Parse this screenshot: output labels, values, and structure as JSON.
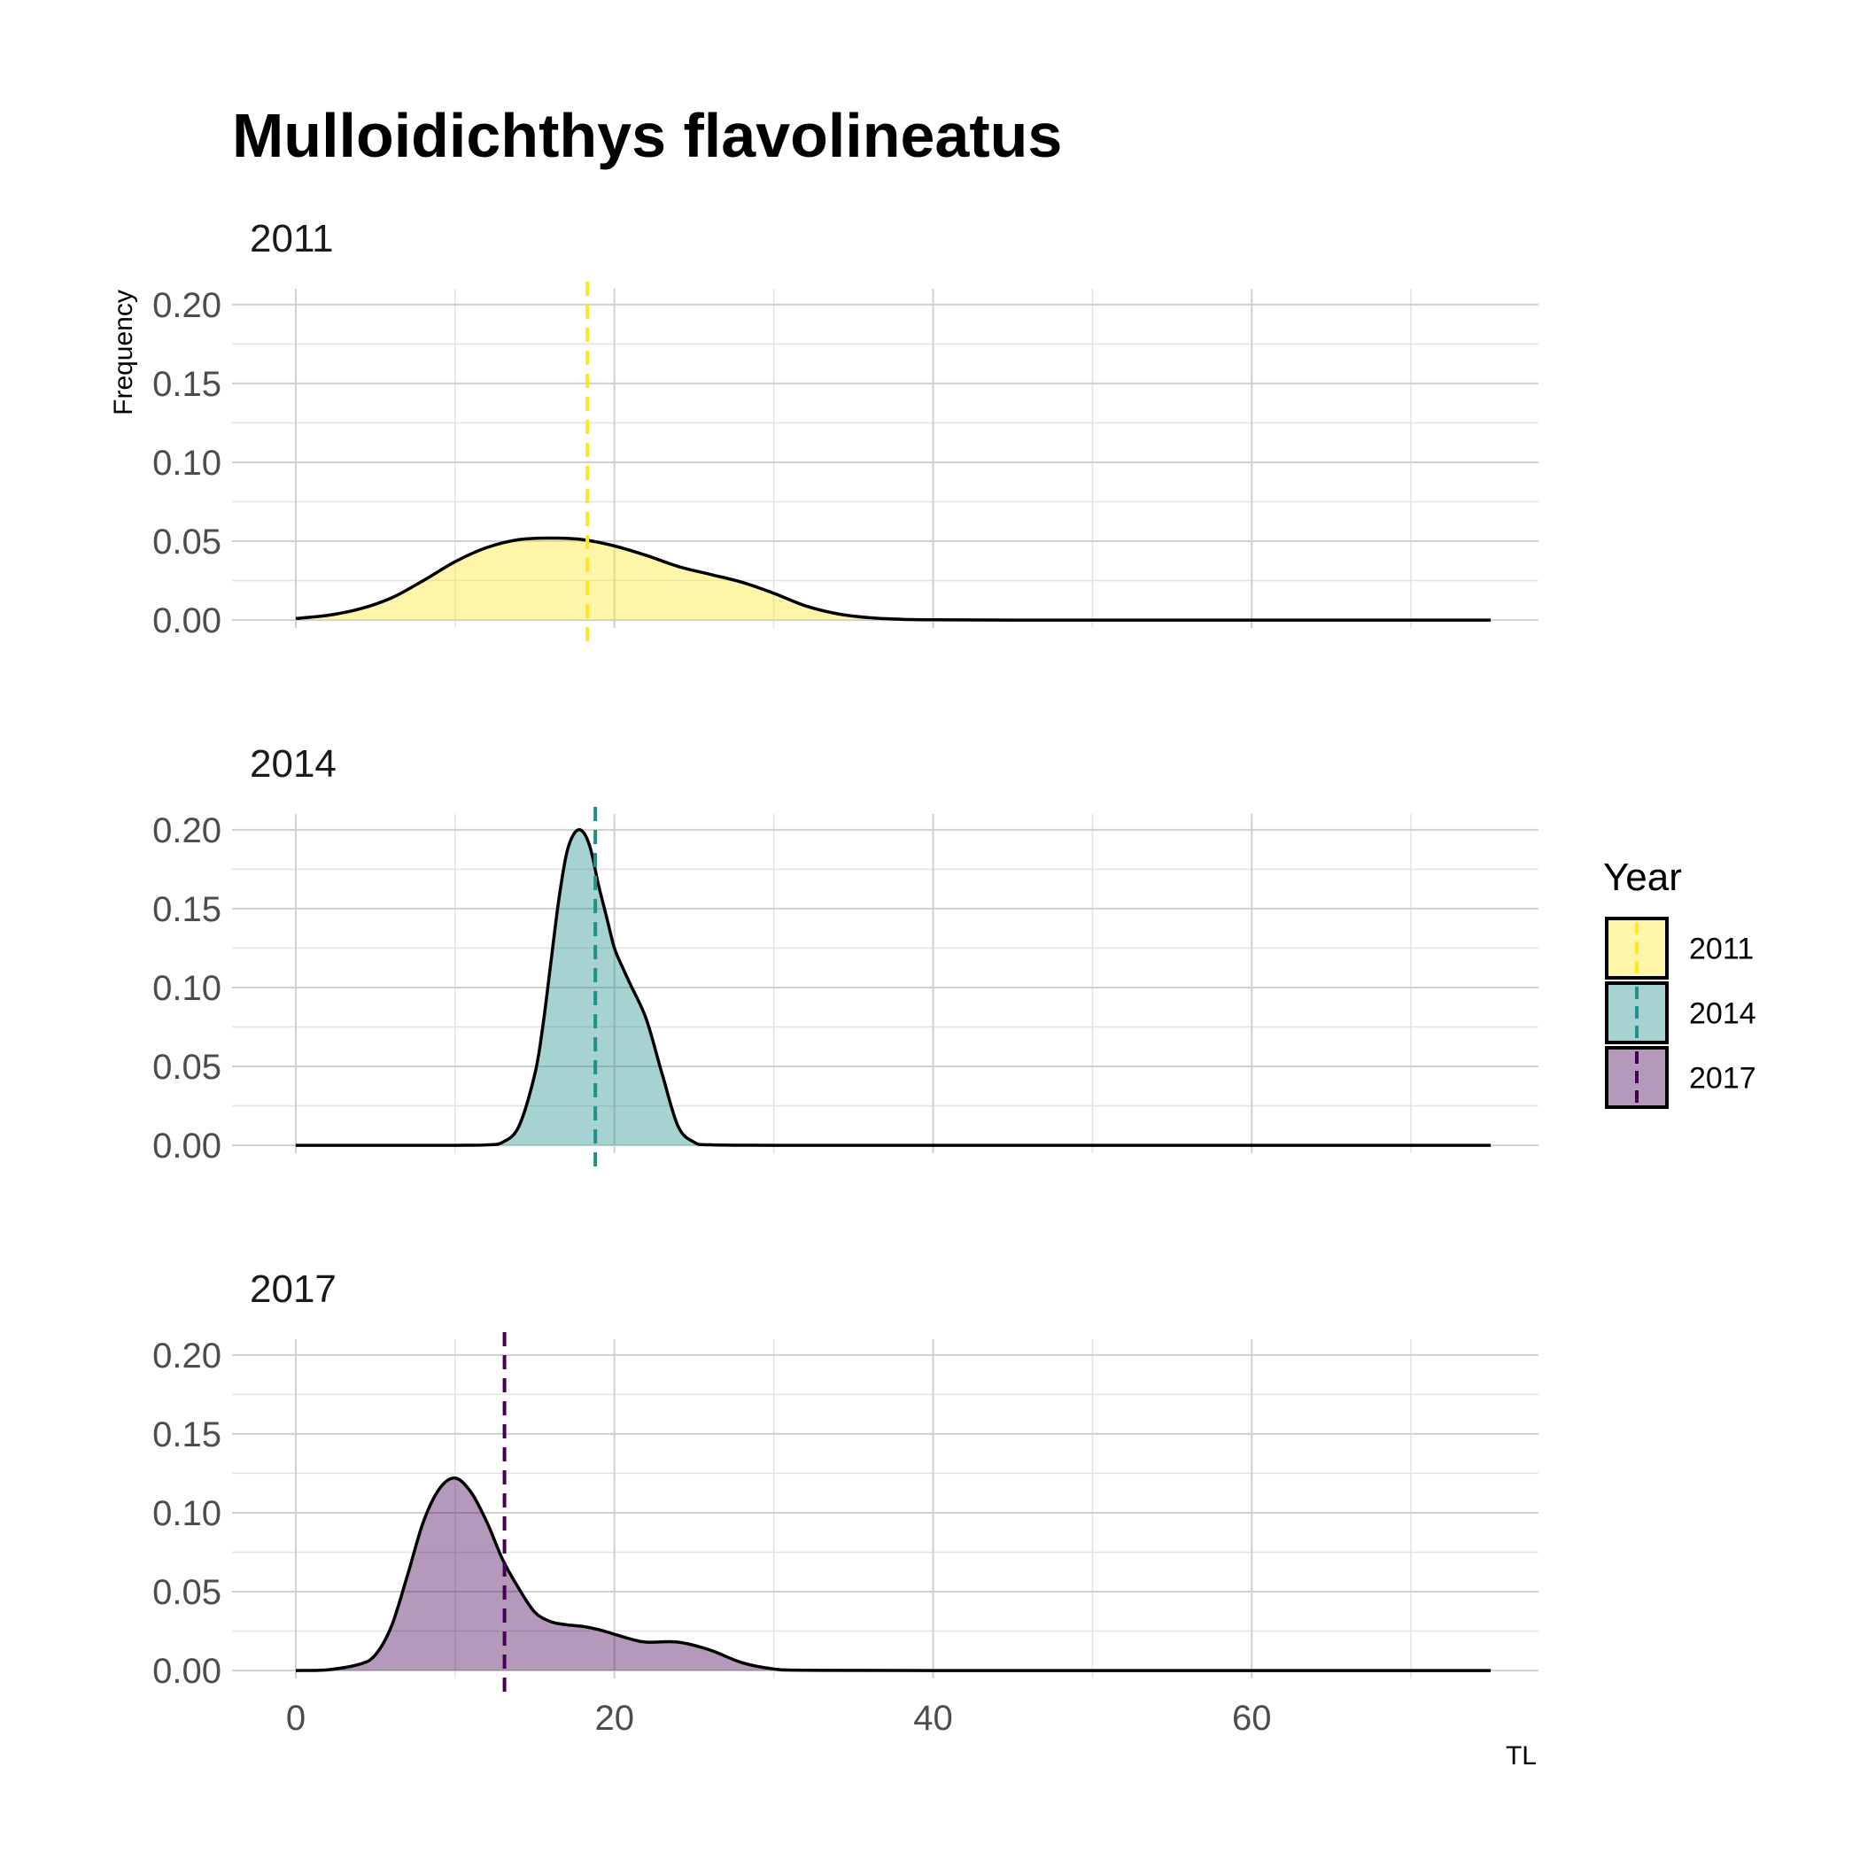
{
  "chart_data": {
    "type": "area",
    "title": "Mulloidichthys flavolineatus",
    "xlabel": "TL",
    "ylabel": "Frequency",
    "xlim": [
      -4,
      78
    ],
    "ylim": [
      -0.005,
      0.21
    ],
    "x_ticks": [
      0,
      20,
      40,
      60
    ],
    "x_tick_labels": [
      "0",
      "20",
      "40",
      "60"
    ],
    "y_ticks": [
      0,
      0.05,
      0.1,
      0.15,
      0.2
    ],
    "y_tick_labels": [
      "0.00",
      "0.05",
      "0.10",
      "0.15",
      "0.20"
    ],
    "grid": true,
    "legend": {
      "title": "Year",
      "position": "right",
      "entries": [
        {
          "label": "2011",
          "color": "#FDE725"
        },
        {
          "label": "2014",
          "color": "#21908C"
        },
        {
          "label": "2017",
          "color": "#440154"
        }
      ]
    },
    "panels": [
      {
        "label": "2011",
        "color": "#FDE725",
        "mean_line_x": 18.3,
        "x": [
          0,
          2,
          4,
          6,
          8,
          10,
          12,
          14,
          16,
          18,
          20,
          22,
          24,
          26,
          28,
          30,
          32,
          34,
          36,
          38,
          40,
          45,
          50,
          60,
          70,
          75
        ],
        "y": [
          0.001,
          0.003,
          0.007,
          0.014,
          0.025,
          0.037,
          0.046,
          0.051,
          0.052,
          0.051,
          0.047,
          0.041,
          0.034,
          0.029,
          0.024,
          0.017,
          0.009,
          0.004,
          0.0015,
          0.0005,
          0.0002,
          0,
          0,
          0,
          0,
          0
        ]
      },
      {
        "label": "2014",
        "color": "#21908C",
        "mean_line_x": 18.8,
        "x": [
          0,
          5,
          10,
          12,
          13,
          14,
          15,
          15.5,
          16,
          16.5,
          17,
          17.5,
          18,
          18.5,
          19,
          19.5,
          20,
          20.5,
          21,
          22,
          23,
          24,
          25,
          26,
          30,
          40,
          75
        ],
        "y": [
          0,
          0,
          0,
          0.0003,
          0.002,
          0.012,
          0.045,
          0.075,
          0.115,
          0.155,
          0.185,
          0.198,
          0.199,
          0.188,
          0.165,
          0.145,
          0.125,
          0.113,
          0.102,
          0.08,
          0.045,
          0.012,
          0.002,
          0.0003,
          0,
          0,
          0
        ]
      },
      {
        "label": "2017",
        "color": "#440154",
        "mean_line_x": 13.1,
        "x": [
          0,
          2,
          4,
          5,
          6,
          7,
          8,
          9,
          10,
          11,
          12,
          13,
          14,
          15,
          16,
          17,
          18,
          19,
          20,
          21,
          22,
          24,
          26,
          28,
          30,
          32,
          40,
          75
        ],
        "y": [
          0,
          0.0005,
          0.004,
          0.01,
          0.028,
          0.06,
          0.094,
          0.115,
          0.122,
          0.113,
          0.094,
          0.07,
          0.052,
          0.037,
          0.031,
          0.029,
          0.028,
          0.026,
          0.023,
          0.02,
          0.018,
          0.018,
          0.013,
          0.005,
          0.001,
          0.0002,
          0,
          0
        ]
      }
    ]
  }
}
